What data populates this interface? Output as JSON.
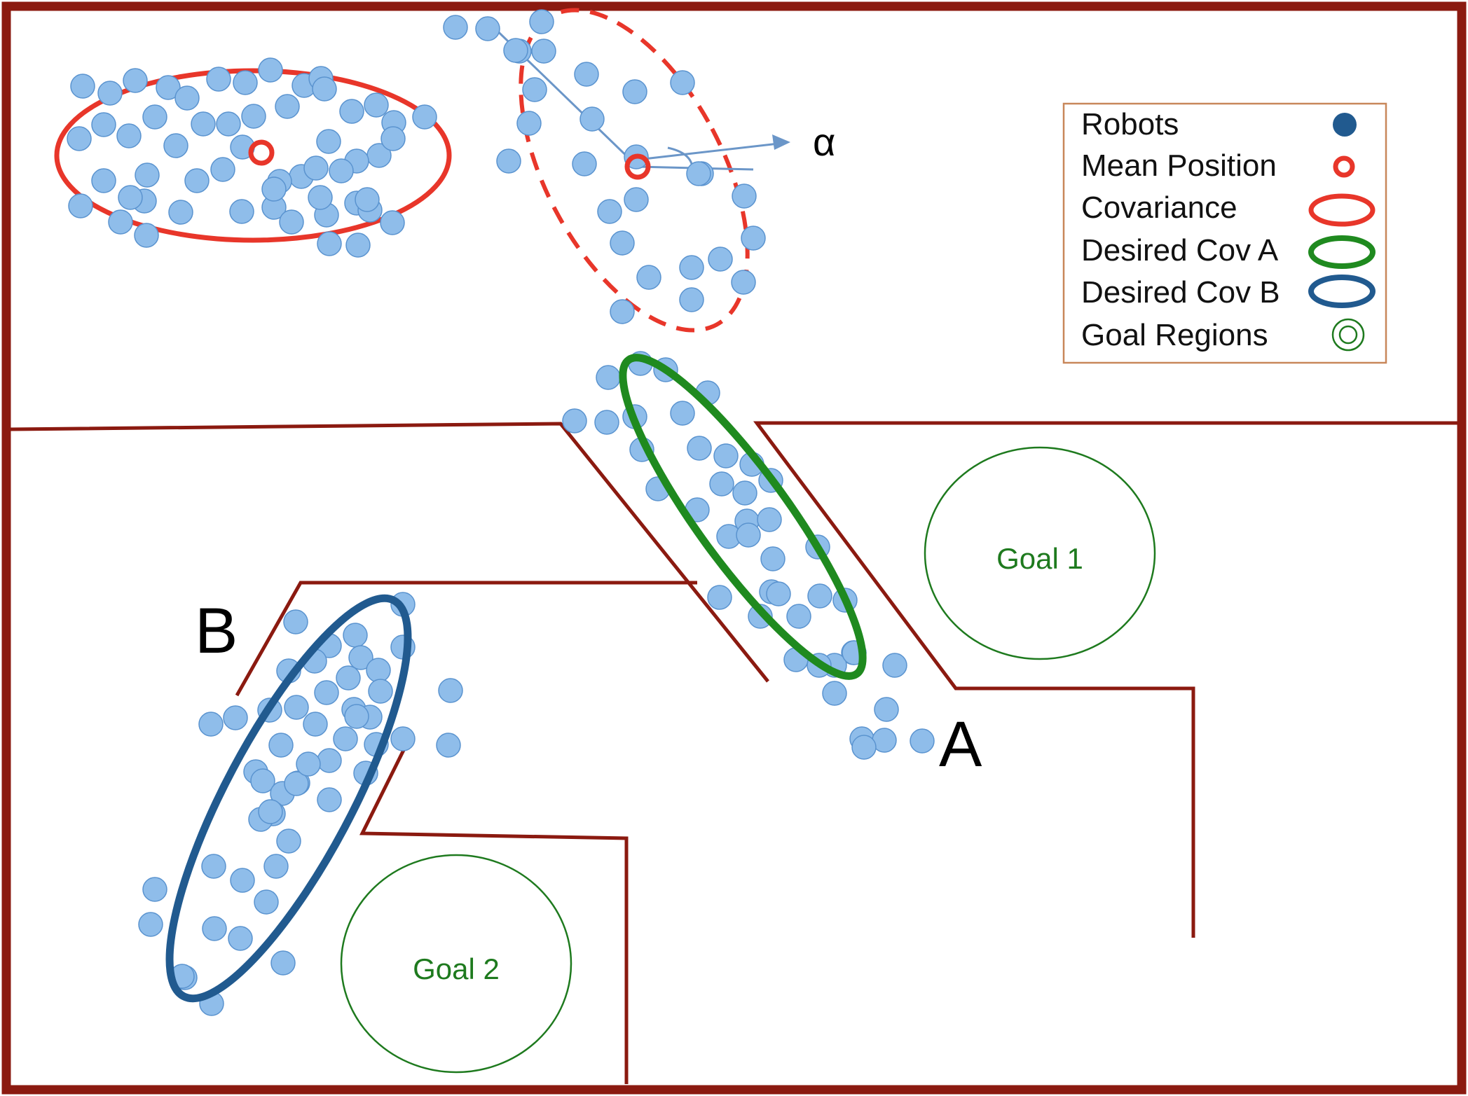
{
  "labels": {
    "alpha": "α",
    "group_a": "A",
    "group_b": "B",
    "goal_1": "Goal 1",
    "goal_2": "Goal 2"
  },
  "legend": {
    "robots": "Robots",
    "mean_position": "Mean Position",
    "covariance": "Covariance",
    "desired_cov_a": "Desired Cov A",
    "desired_cov_b": "Desired Cov B",
    "goal_regions": "Goal Regions"
  },
  "colors": {
    "wall": "#8b1a10",
    "robot_fill": "#8fbdea",
    "robot_stroke": "#5a93cf",
    "robot_legend": "#215a8f",
    "mean_position": "#e8362a",
    "covariance": "#e8362a",
    "desired_cov_a": "#1f8a1f",
    "desired_cov_b": "#215a8f",
    "goal_region": "#1e7a1e",
    "alpha_arrow": "#6b96c8",
    "legend_border": "#c8875a"
  },
  "icons": {
    "robot": "filled-circle-icon",
    "mean_position": "ring-icon",
    "covariance": "ellipse-icon",
    "goal_region": "double-circle-icon"
  }
}
